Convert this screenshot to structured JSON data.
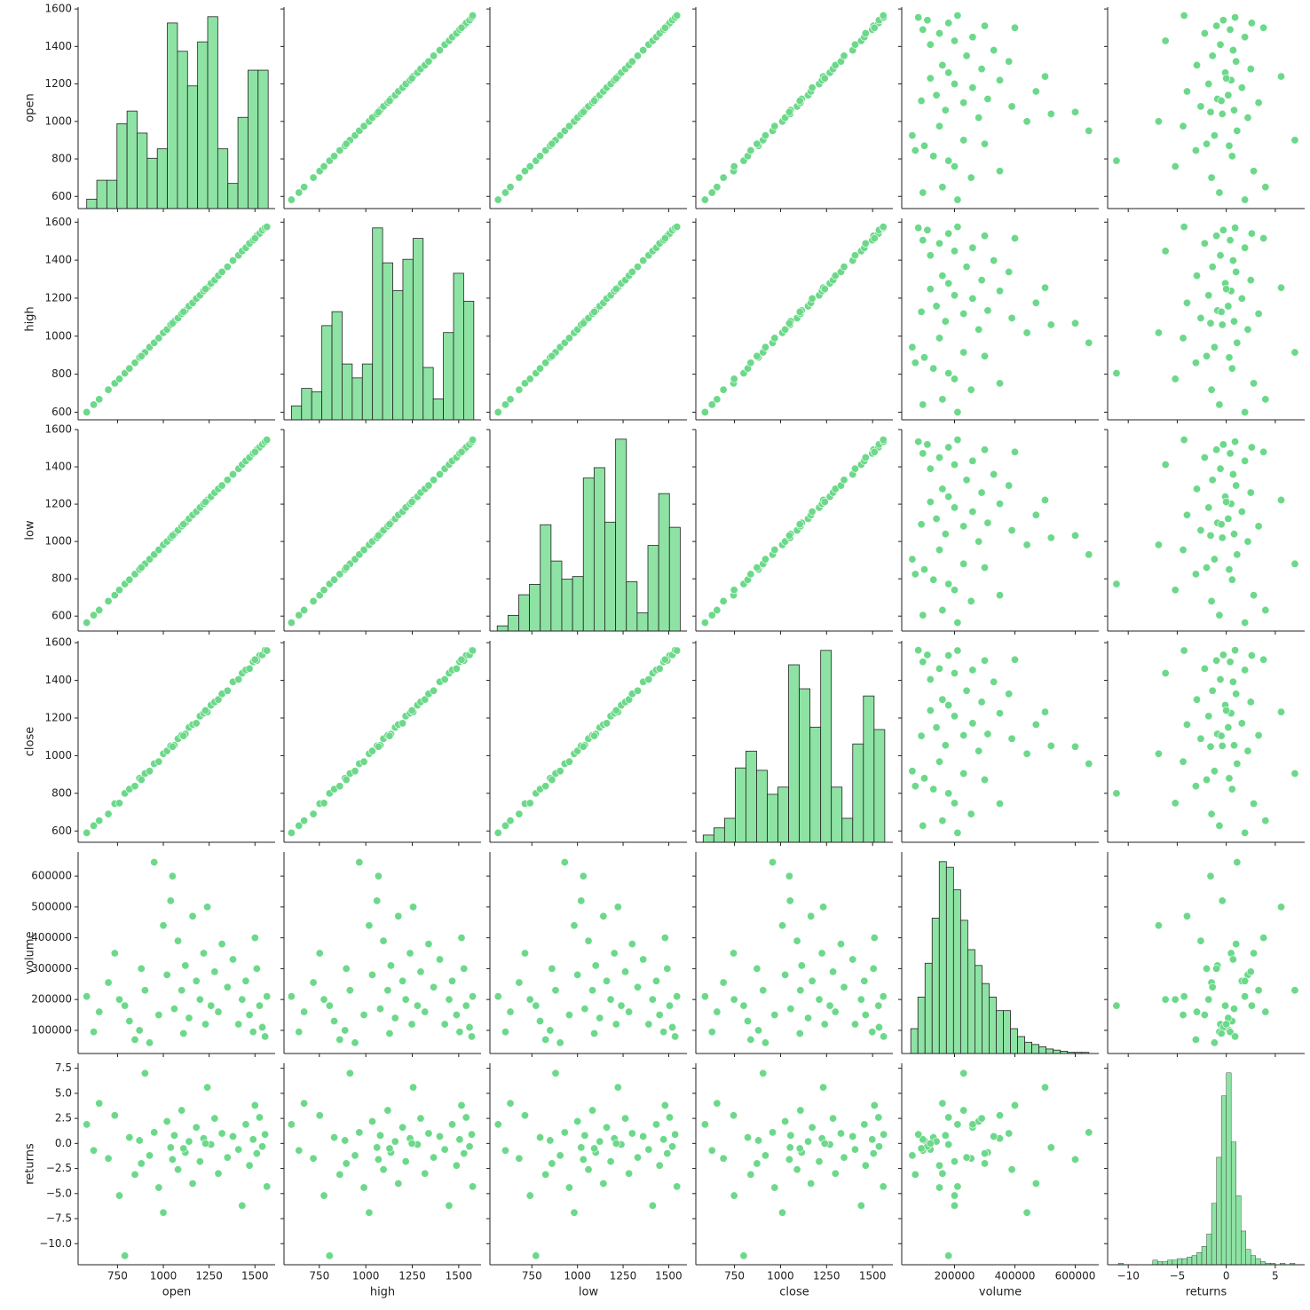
{
  "chart_data": {
    "type": "pairplot",
    "variables": [
      "open",
      "high",
      "low",
      "close",
      "volume",
      "returns"
    ],
    "color": "#6cd98a",
    "hist_color": "#8ee3a4",
    "lims": [
      [
        535,
        1610
      ],
      [
        560,
        1620
      ],
      [
        520,
        1600
      ],
      [
        540,
        1610
      ],
      [
        25000,
        678000
      ],
      [
        -12.1,
        8.0
      ]
    ],
    "xticks": [
      [
        750,
        1000,
        1250,
        1500
      ],
      [
        750,
        1000,
        1250,
        1500
      ],
      [
        750,
        1000,
        1250,
        1500
      ],
      [
        750,
        1000,
        1250,
        1500
      ],
      [
        200000,
        400000,
        600000
      ],
      [
        {
          "value": -10,
          "label": "−10"
        },
        {
          "value": -5,
          "label": "−5"
        },
        0,
        5
      ]
    ],
    "yticks": [
      [
        600,
        800,
        1000,
        1200,
        1400,
        1600
      ],
      [
        600,
        800,
        1000,
        1200,
        1400,
        1600
      ],
      [
        600,
        800,
        1000,
        1200,
        1400,
        1600
      ],
      [
        600,
        800,
        1000,
        1200,
        1400,
        1600
      ],
      [
        100000,
        200000,
        300000,
        400000,
        500000,
        600000
      ],
      [
        {
          "value": -10,
          "label": "−10.0"
        },
        {
          "value": -7.5,
          "label": "−7.5"
        },
        {
          "value": -5,
          "label": "−5.0"
        },
        {
          "value": -2.5,
          "label": "−2.5"
        },
        {
          "value": 0,
          "label": "0.0"
        },
        2.5,
        {
          "value": 5,
          "label": "5.0"
        },
        7.5
      ]
    ],
    "hist": [
      {
        "bins": [
          582,
          637,
          692,
          747,
          802,
          857,
          912,
          967,
          1022,
          1077,
          1132,
          1187,
          1242,
          1297,
          1352,
          1407,
          1462,
          1517,
          1572
        ],
        "counts": [
          3,
          9,
          9,
          27,
          31,
          24,
          16,
          19,
          59,
          50,
          39,
          53,
          61,
          19,
          8,
          29,
          44,
          44
        ]
      },
      {
        "bins": [
          600,
          654.5,
          709,
          763.5,
          818,
          872.5,
          927,
          981.5,
          1036,
          1090.5,
          1145,
          1199.5,
          1254,
          1308.5,
          1363,
          1417.5,
          1472,
          1526.5,
          1581
        ],
        "counts": [
          4,
          9,
          8,
          27,
          31,
          16,
          12,
          16,
          55,
          45,
          37,
          46,
          52,
          15,
          6,
          25,
          42,
          34
        ]
      },
      {
        "bins": [
          560,
          619,
          678,
          737,
          796,
          855,
          914,
          973,
          1032,
          1091,
          1150,
          1209,
          1268,
          1327,
          1386,
          1445,
          1504,
          1563
        ],
        "counts": [
          2,
          6,
          14,
          18,
          41,
          27,
          20,
          21,
          59,
          63,
          42,
          74,
          19,
          7,
          33,
          53,
          40
        ]
      },
      {
        "bins": [
          580,
          638,
          696,
          754,
          812,
          870,
          928,
          986,
          1044,
          1102,
          1160,
          1218,
          1276,
          1334,
          1392,
          1450,
          1508,
          1566
        ],
        "counts": [
          3,
          6,
          10,
          31,
          38,
          30,
          20,
          23,
          74,
          64,
          48,
          80,
          23,
          10,
          41,
          61,
          47
        ]
      },
      {
        "bins": [
          55000,
          78600,
          102200,
          125800,
          149400,
          173000,
          196600,
          220200,
          243800,
          267400,
          291000,
          314600,
          338200,
          361800,
          385400,
          409000,
          432600,
          456200,
          479800,
          503400,
          527000,
          550600,
          574200,
          597800,
          621400,
          645000
        ],
        "counts": [
          22,
          50,
          80,
          120,
          170,
          165,
          145,
          118,
          92,
          78,
          62,
          50,
          38,
          38,
          22,
          15,
          10,
          8,
          6,
          4,
          3,
          2,
          1,
          1,
          1
        ]
      },
      {
        "bins": [
          -11,
          -10.5,
          -10,
          -9.5,
          -9,
          -8.5,
          -8,
          -7.5,
          -7,
          -6.5,
          -6,
          -5.5,
          -5,
          -4.5,
          -4,
          -3.5,
          -3,
          -2.5,
          -2,
          -1.5,
          -1,
          -0.5,
          0,
          0.5,
          1,
          1.5,
          2,
          2.5,
          3,
          3.5,
          4,
          4.5,
          5,
          5.5,
          6,
          6.5,
          7
        ],
        "counts": [
          1,
          0,
          0,
          0,
          0,
          0,
          0,
          3,
          2,
          2,
          3,
          3,
          4,
          4,
          5,
          6,
          8,
          12,
          20,
          40,
          70,
          110,
          125,
          80,
          45,
          22,
          10,
          6,
          4,
          2,
          1,
          1,
          0,
          1,
          0,
          1
        ]
      }
    ],
    "rows": [
      [
        582,
        600,
        565,
        590,
        210000,
        1.9
      ],
      [
        620,
        640,
        605,
        628,
        95000,
        -0.7
      ],
      [
        650,
        668,
        632,
        655,
        160000,
        4.0
      ],
      [
        700,
        718,
        680,
        690,
        255000,
        -1.5
      ],
      [
        735,
        752,
        712,
        745,
        350000,
        2.8
      ],
      [
        760,
        775,
        740,
        748,
        200000,
        -5.2
      ],
      [
        790,
        805,
        772,
        800,
        180000,
        -11.2
      ],
      [
        815,
        830,
        795,
        822,
        130000,
        0.6
      ],
      [
        845,
        860,
        825,
        838,
        70000,
        -3.1
      ],
      [
        870,
        888,
        850,
        880,
        100000,
        0.3
      ],
      [
        900,
        915,
        880,
        905,
        230000,
        7.0
      ],
      [
        925,
        942,
        905,
        918,
        60000,
        -1.2
      ],
      [
        950,
        965,
        930,
        957,
        645000,
        1.1
      ],
      [
        975,
        990,
        955,
        968,
        150000,
        -4.4
      ],
      [
        1000,
        1018,
        982,
        1010,
        440000,
        -6.9
      ],
      [
        1020,
        1035,
        1000,
        1025,
        280000,
        2.2
      ],
      [
        1040,
        1060,
        1020,
        1052,
        520000,
        -0.4
      ],
      [
        1060,
        1078,
        1040,
        1055,
        170000,
        0.8
      ],
      [
        1080,
        1095,
        1060,
        1090,
        390000,
        -2.6
      ],
      [
        1100,
        1118,
        1082,
        1108,
        230000,
        3.3
      ],
      [
        1120,
        1135,
        1100,
        1115,
        310000,
        -0.9
      ],
      [
        1140,
        1158,
        1122,
        1150,
        140000,
        0.2
      ],
      [
        1160,
        1175,
        1142,
        1165,
        470000,
        -4.0
      ],
      [
        1180,
        1198,
        1160,
        1172,
        260000,
        1.6
      ],
      [
        1200,
        1215,
        1182,
        1210,
        200000,
        -1.8
      ],
      [
        1220,
        1238,
        1202,
        1225,
        350000,
        0.5
      ],
      [
        1240,
        1255,
        1222,
        1232,
        500000,
        5.6
      ],
      [
        1260,
        1278,
        1240,
        1268,
        180000,
        -0.1
      ],
      [
        1280,
        1295,
        1262,
        1285,
        290000,
        2.5
      ],
      [
        1300,
        1318,
        1282,
        1298,
        160000,
        -3.0
      ],
      [
        1320,
        1338,
        1300,
        1328,
        380000,
        1.0
      ],
      [
        1350,
        1365,
        1330,
        1345,
        240000,
        -1.4
      ],
      [
        1380,
        1398,
        1360,
        1392,
        330000,
        0.7
      ],
      [
        1410,
        1425,
        1390,
        1405,
        120000,
        -0.6
      ],
      [
        1430,
        1448,
        1412,
        1438,
        200000,
        -6.2
      ],
      [
        1450,
        1465,
        1432,
        1455,
        260000,
        1.9
      ],
      [
        1470,
        1488,
        1450,
        1462,
        150000,
        -2.2
      ],
      [
        1490,
        1505,
        1472,
        1498,
        95000,
        0.4
      ],
      [
        1510,
        1528,
        1492,
        1505,
        300000,
        -1.0
      ],
      [
        1525,
        1540,
        1505,
        1532,
        180000,
        2.6
      ],
      [
        1540,
        1558,
        1520,
        1535,
        110000,
        -0.3
      ],
      [
        1555,
        1570,
        1535,
        1560,
        80000,
        0.9
      ],
      [
        1565,
        1575,
        1545,
        1558,
        210000,
        -4.3
      ],
      [
        1500,
        1515,
        1480,
        1510,
        400000,
        3.8
      ],
      [
        1110,
        1128,
        1092,
        1105,
        90000,
        -0.5
      ],
      [
        880,
        895,
        860,
        872,
        300000,
        -2.0
      ],
      [
        1230,
        1248,
        1212,
        1240,
        120000,
        0.0
      ],
      [
        1050,
        1068,
        1032,
        1048,
        600000,
        -1.6
      ]
    ]
  }
}
